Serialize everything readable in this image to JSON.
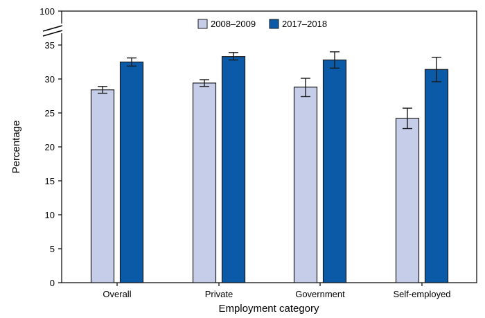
{
  "chart_data": {
    "type": "bar",
    "title": "",
    "xlabel": "Employment category",
    "ylabel": "Percentage",
    "ylim": [
      0,
      35
    ],
    "axis_break": true,
    "break_top_label": "100",
    "yticks": [
      "0",
      "5",
      "10",
      "15",
      "20",
      "25",
      "30",
      "35"
    ],
    "grid": false,
    "legend_position": "top-center",
    "categories": [
      "Overall",
      "Private",
      "Government",
      "Self-employed"
    ],
    "series": [
      {
        "name": "2008–2009",
        "color": "#c5cde9",
        "values": [
          28.4,
          29.4,
          28.8,
          24.2
        ],
        "error_low": [
          27.9,
          28.9,
          27.4,
          22.7
        ],
        "error_high": [
          28.9,
          29.9,
          30.1,
          25.7
        ]
      },
      {
        "name": "2017–2018",
        "color": "#0a5aa8",
        "values": [
          32.5,
          33.3,
          32.8,
          31.4
        ],
        "error_low": [
          31.9,
          32.8,
          31.6,
          29.6
        ],
        "error_high": [
          33.1,
          33.9,
          34.0,
          33.2
        ]
      }
    ]
  }
}
